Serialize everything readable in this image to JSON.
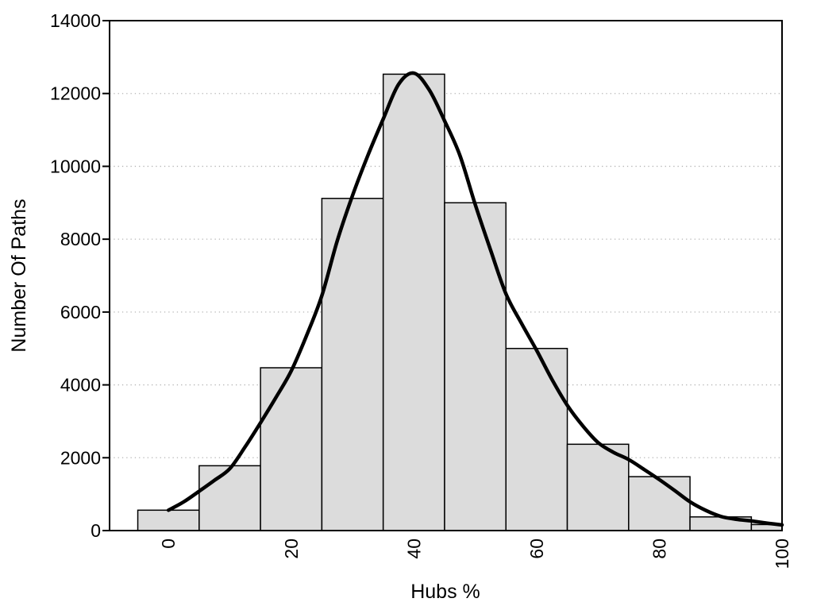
{
  "chart_data": {
    "type": "bar",
    "subtype": "histogram-with-density-curve",
    "title": "",
    "xlabel": "Hubs %",
    "ylabel": "Number Of Paths",
    "x_ticks": [
      0,
      20,
      40,
      60,
      80,
      100
    ],
    "y_ticks": [
      0,
      2000,
      4000,
      6000,
      8000,
      10000,
      12000,
      14000
    ],
    "xlim": [
      -9.6,
      100
    ],
    "ylim": [
      0,
      14000
    ],
    "grid": "horizontal-dotted",
    "legend": "none",
    "bin_width": 10,
    "categories": [
      0,
      10,
      20,
      30,
      40,
      50,
      60,
      70,
      80,
      90,
      100
    ],
    "values": [
      560,
      1780,
      4470,
      9120,
      12530,
      9000,
      5000,
      2370,
      1480,
      375,
      165
    ],
    "series": [
      {
        "name": "path-count-histogram",
        "type": "bar",
        "bar_centers": [
          0,
          10,
          20,
          30,
          40,
          50,
          60,
          70,
          80,
          90,
          100
        ],
        "values": [
          560,
          1780,
          4470,
          9120,
          12530,
          9000,
          5000,
          2370,
          1480,
          375,
          165
        ]
      },
      {
        "name": "density-curve",
        "type": "line",
        "x": [
          0,
          2.5,
          5,
          7.5,
          10,
          12.5,
          15,
          17.5,
          20,
          22.5,
          25,
          27.5,
          30,
          32.5,
          35,
          37.5,
          40,
          42.5,
          45,
          47.5,
          50,
          52.5,
          55,
          57.5,
          60,
          62.5,
          65,
          67.5,
          70,
          72.5,
          75,
          77.5,
          80,
          82.5,
          85,
          87.5,
          90,
          92.5,
          95,
          97.5,
          100
        ],
        "y": [
          560,
          790,
          1080,
          1380,
          1700,
          2300,
          2960,
          3650,
          4380,
          5350,
          6450,
          7950,
          9200,
          10300,
          11300,
          12250,
          12560,
          12100,
          11250,
          10300,
          8950,
          7700,
          6500,
          5700,
          4950,
          4150,
          3440,
          2880,
          2420,
          2150,
          1950,
          1680,
          1400,
          1100,
          790,
          560,
          390,
          310,
          265,
          205,
          155
        ]
      }
    ],
    "colors": {
      "background": "#ffffff",
      "bar_fill": "#dcdcdc",
      "bar_stroke": "#000000",
      "curve": "#000000",
      "grid": "#b5b5b5",
      "axis": "#000000",
      "text": "#000000"
    }
  }
}
